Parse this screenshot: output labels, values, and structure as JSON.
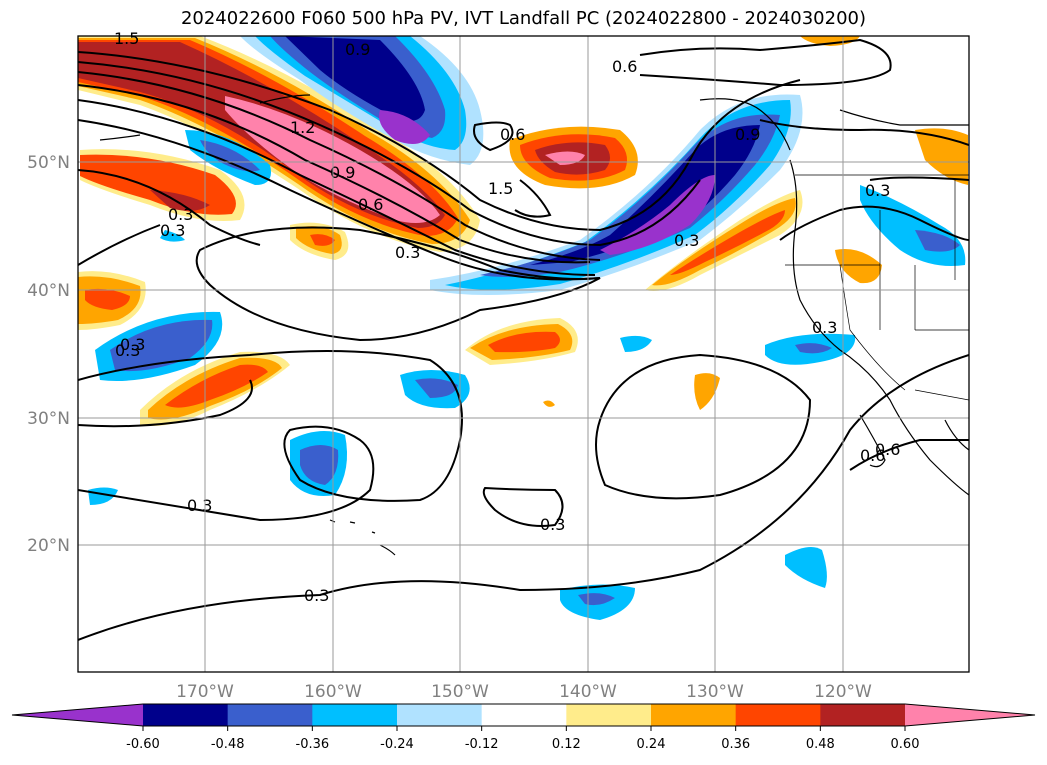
{
  "title": "2024022600 F060 500 hPa PV, IVT Landfall PC (2024022800 - 2024030200)",
  "lat_labels": [
    "50°N",
    "40°N",
    "30°N",
    "20°N"
  ],
  "lon_labels": [
    "170°W",
    "160°W",
    "150°W",
    "140°W",
    "130°W",
    "120°W"
  ],
  "contour_labels": [
    "1.5",
    "1.5",
    "1.2",
    "0.9",
    "0.6",
    "0.6",
    "0.6",
    "0.9",
    "0.3",
    "0.3",
    "0.3",
    "0.3",
    "0.3",
    "0.3",
    "0.3",
    "0.3",
    "0.3",
    "0.3",
    "0.3",
    "0.6",
    "0.9",
    "0.6"
  ],
  "colorbar": {
    "ticks": [
      "-0.60",
      "-0.48",
      "-0.36",
      "-0.24",
      "-0.12",
      "0.12",
      "0.24",
      "0.36",
      "0.48",
      "0.60"
    ],
    "colors": [
      "#9932cc",
      "#00008b",
      "#3a5fcd",
      "#00bfff",
      "#b0e2ff",
      "#ffffff",
      "#ffec8b",
      "#ffa500",
      "#ff4500",
      "#b22222",
      "#ff82ab"
    ]
  }
}
